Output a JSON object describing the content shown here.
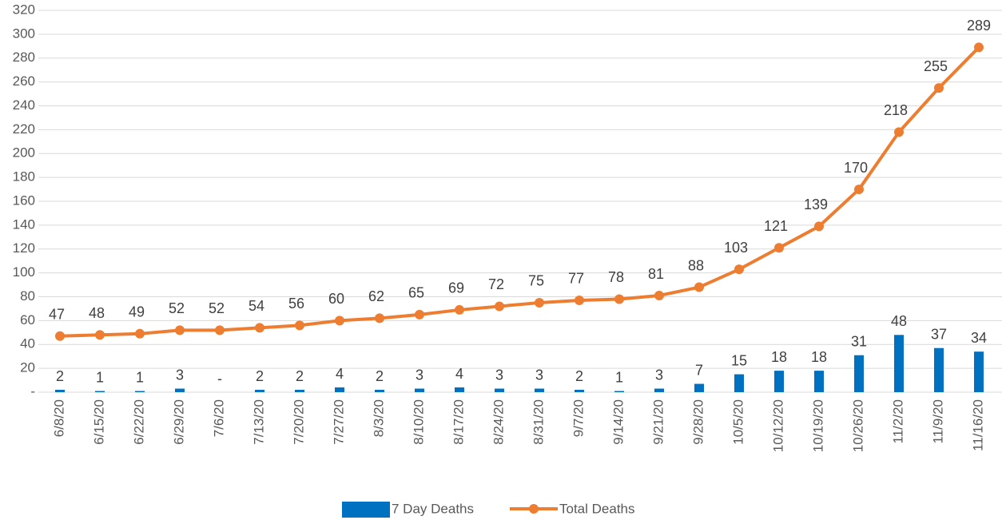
{
  "chart_data": {
    "type": "bar+line",
    "categories": [
      "6/8/20",
      "6/15/20",
      "6/22/20",
      "6/29/20",
      "7/6/20",
      "7/13/20",
      "7/20/20",
      "7/27/20",
      "8/3/20",
      "8/10/20",
      "8/17/20",
      "8/24/20",
      "8/31/20",
      "9/7/20",
      "9/14/20",
      "9/21/20",
      "9/28/20",
      "10/5/20",
      "10/12/20",
      "10/19/20",
      "10/26/20",
      "11/2/20",
      "11/9/20",
      "11/16/20"
    ],
    "series": [
      {
        "name": "7 Day Deaths",
        "type": "bar",
        "color": "#0070c0",
        "values": [
          2,
          1,
          1,
          3,
          0,
          2,
          2,
          4,
          2,
          3,
          4,
          3,
          3,
          2,
          1,
          3,
          7,
          15,
          18,
          18,
          31,
          48,
          37,
          34
        ],
        "value_labels": [
          "2",
          "1",
          "1",
          "3",
          "-",
          "2",
          "2",
          "4",
          "2",
          "3",
          "4",
          "3",
          "3",
          "2",
          "1",
          "3",
          "7",
          "15",
          "18",
          "18",
          "31",
          "48",
          "37",
          "34"
        ]
      },
      {
        "name": "Total Deaths",
        "type": "line",
        "color": "#ed7d31",
        "values": [
          47,
          48,
          49,
          52,
          52,
          54,
          56,
          60,
          62,
          65,
          69,
          72,
          75,
          77,
          78,
          81,
          88,
          103,
          121,
          139,
          170,
          218,
          255,
          289
        ]
      }
    ],
    "ylim": [
      0,
      320
    ],
    "yticks": [
      {
        "value": 0,
        "label": "-"
      },
      20,
      40,
      60,
      80,
      100,
      120,
      140,
      160,
      180,
      200,
      220,
      240,
      260,
      280,
      300,
      320
    ],
    "grid": true,
    "legend": "bottom"
  }
}
